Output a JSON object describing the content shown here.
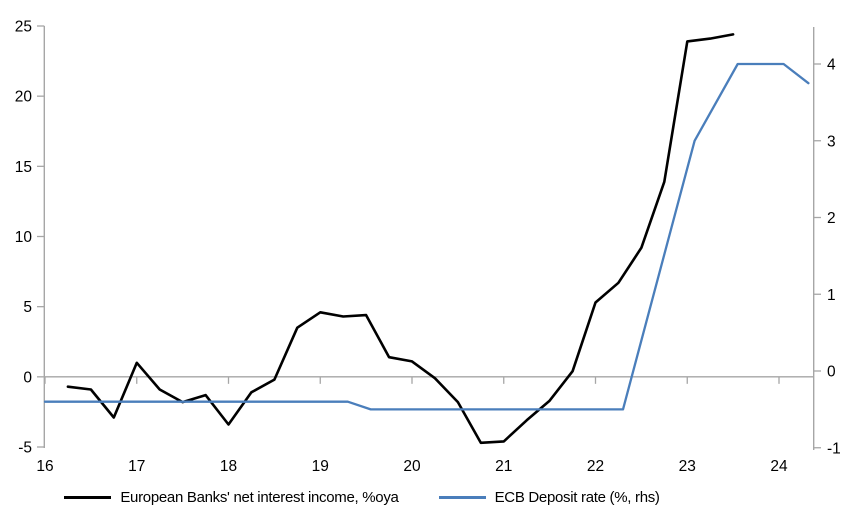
{
  "chart_data": {
    "type": "line",
    "title": "",
    "x_axis": {
      "ticks": [
        16,
        17,
        18,
        19,
        20,
        21,
        22,
        23,
        24
      ],
      "range": [
        16,
        24.37
      ]
    },
    "left_axis": {
      "ticks": [
        25,
        20,
        15,
        10,
        5,
        0,
        -5
      ],
      "range": [
        -5,
        25
      ]
    },
    "right_axis": {
      "ticks": [
        4,
        3,
        2,
        1,
        0,
        -1
      ],
      "range": [
        -1.05,
        4.48
      ]
    },
    "grid": "zero-line-only",
    "axis_color": "#a6a6a6",
    "legend_position": "bottom",
    "series": [
      {
        "name": "European Banks' net interest income, %oya",
        "color": "#000000",
        "axis": "left",
        "points": [
          [
            16.25,
            -0.7
          ],
          [
            16.5,
            -0.9
          ],
          [
            16.75,
            -2.9
          ],
          [
            17.0,
            1.0
          ],
          [
            17.25,
            -0.9
          ],
          [
            17.5,
            -1.8
          ],
          [
            17.75,
            -1.3
          ],
          [
            18.0,
            -3.4
          ],
          [
            18.25,
            -1.1
          ],
          [
            18.5,
            -0.2
          ],
          [
            18.75,
            3.5
          ],
          [
            19.0,
            4.6
          ],
          [
            19.25,
            4.3
          ],
          [
            19.5,
            4.4
          ],
          [
            19.75,
            1.4
          ],
          [
            20.0,
            1.1
          ],
          [
            20.25,
            -0.1
          ],
          [
            20.5,
            -1.8
          ],
          [
            20.75,
            -4.7
          ],
          [
            21.0,
            -4.6
          ],
          [
            21.25,
            -3.1
          ],
          [
            21.5,
            -1.7
          ],
          [
            21.75,
            0.4
          ],
          [
            22.0,
            5.3
          ],
          [
            22.25,
            6.7
          ],
          [
            22.5,
            9.2
          ],
          [
            22.75,
            13.9
          ],
          [
            23.0,
            23.9
          ],
          [
            23.25,
            24.1
          ],
          [
            23.5,
            24.4
          ]
        ]
      },
      {
        "name": "ECB Deposit rate (%, rhs)",
        "color": "#4a7ebb",
        "axis": "right",
        "points": [
          [
            16.0,
            -0.4
          ],
          [
            19.3,
            -0.4
          ],
          [
            19.55,
            -0.5
          ],
          [
            22.3,
            -0.5
          ],
          [
            23.08,
            3.0
          ],
          [
            23.55,
            4.0
          ],
          [
            24.05,
            4.0
          ],
          [
            24.32,
            3.75
          ]
        ]
      }
    ]
  }
}
